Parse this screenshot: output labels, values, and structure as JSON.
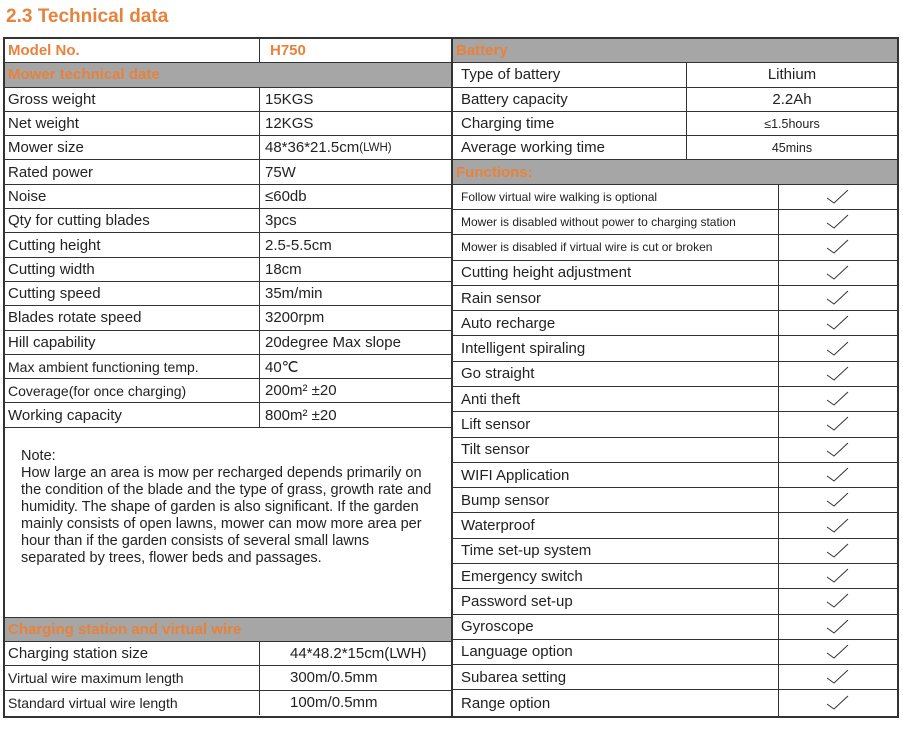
{
  "title": "2.3 Technical data",
  "left": {
    "model_label": "Model No.",
    "model_value": "H750",
    "mower_header": "Mower technical date",
    "mower_rows": [
      [
        "Gross weight",
        "15KGS"
      ],
      [
        "Net weight",
        "12KGS"
      ],
      [
        "Mower size",
        "48*36*21.5cm",
        "(LWH)"
      ],
      [
        "Rated power",
        "75W"
      ],
      [
        "Noise",
        "≤60db"
      ],
      [
        "Qty for cutting blades",
        "3pcs"
      ],
      [
        "Cutting height",
        "2.5-5.5cm"
      ],
      [
        "Cutting width",
        "18cm"
      ],
      [
        "Cutting speed",
        "35m/min"
      ],
      [
        "Blades rotate speed",
        "3200rpm"
      ],
      [
        "Hill capability",
        "20degree Max slope"
      ],
      [
        "Max ambient functioning temp.",
        "40℃"
      ],
      [
        "Coverage(for once charging)",
        "200m² ±20"
      ],
      [
        "Working capacity",
        "800m² ±20"
      ]
    ],
    "note_title": "Note:",
    "note_text": "How large an area is mow per recharged depends primarily on the condition of the blade and the type of grass, growth rate and humidity. The shape of garden is also significant. If the garden mainly consists of open lawns, mower can mow more area per hour than if the garden consists of several small lawns separated by trees, flower beds and passages.",
    "charging_header": "Charging station and virtual wire",
    "charging_rows": [
      [
        "Charging station size",
        "44*48.2*15cm(LWH)"
      ],
      [
        "Virtual wire maximum length",
        "300m/0.5mm"
      ],
      [
        "Standard virtual wire length",
        "100m/0.5mm"
      ]
    ]
  },
  "right": {
    "battery_header": "Battery",
    "battery_rows": [
      [
        "Type of battery",
        "Lithium"
      ],
      [
        "Battery capacity",
        "2.2Ah"
      ],
      [
        "Charging time",
        "≤1.5hours"
      ],
      [
        "Average working time",
        "45mins"
      ]
    ],
    "functions_header": "Functions:",
    "functions": [
      "Follow virtual wire walking is optional",
      "Mower is disabled without power to charging station",
      "Mower is disabled if virtual wire is cut or broken",
      "Cutting height adjustment",
      "Rain sensor",
      "Auto recharge",
      "Intelligent spiraling",
      "Go straight",
      "Anti theft",
      "Lift sensor",
      "Tilt sensor",
      "WIFI Application",
      "Bump sensor",
      "Waterproof",
      "Time set-up system",
      "Emergency switch",
      "Password set-up",
      "Gyroscope",
      "Language option",
      "Subarea setting",
      "Range option"
    ],
    "check_icon": "checkmark-icon"
  }
}
